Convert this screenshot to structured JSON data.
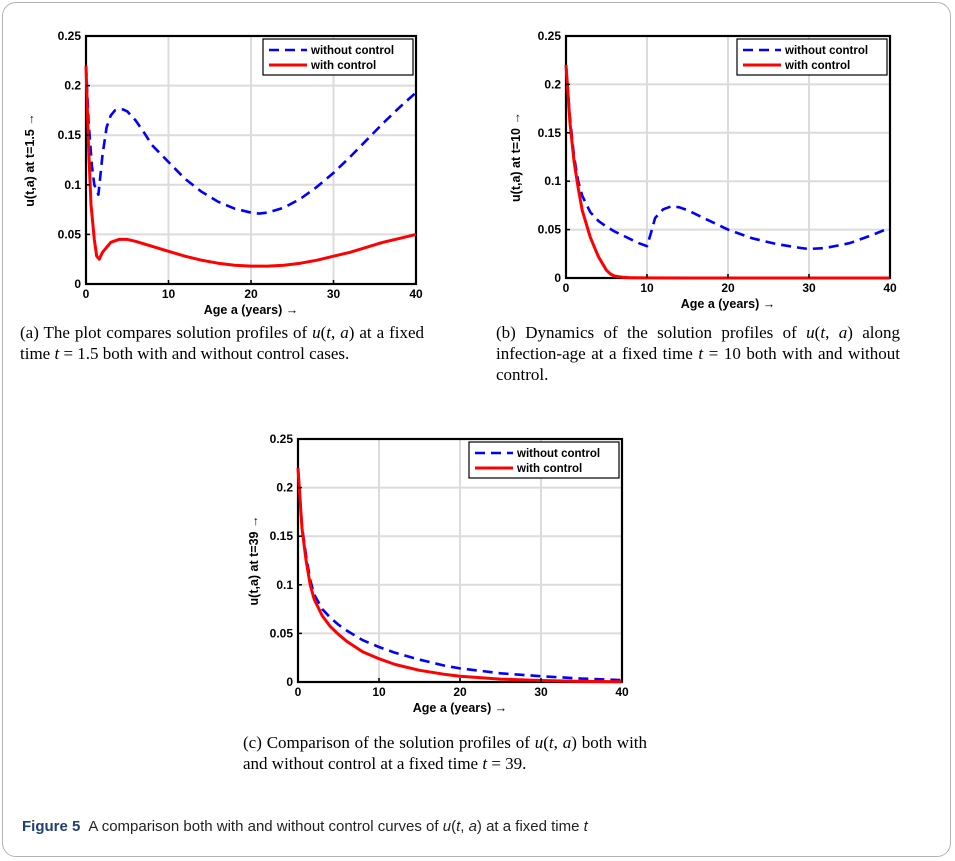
{
  "chart_data": [
    {
      "id": "a",
      "type": "line",
      "xlabel": "Age a (years) →",
      "ylabel": "u(t,a) at t=1.5 →",
      "xlim": [
        0,
        40
      ],
      "ylim": [
        0,
        0.25
      ],
      "xticks": [
        "0",
        "10",
        "20",
        "30",
        "40"
      ],
      "yticks": [
        "0",
        "0.05",
        "0.1",
        "0.15",
        "0.2",
        "0.25"
      ],
      "grid": true,
      "legend_position": "top-right",
      "series": [
        {
          "name": "without control",
          "color": "#0000ff",
          "dash": true,
          "x": [
            0,
            0.3,
            0.7,
            1,
            1.5,
            2,
            2.5,
            3,
            3.5,
            4,
            4.5,
            5,
            6,
            7,
            8,
            10,
            12,
            14,
            16,
            18,
            20,
            21,
            22,
            24,
            26,
            28,
            30,
            32,
            34,
            36,
            38,
            40
          ],
          "y": [
            0.22,
            0.165,
            0.12,
            0.1,
            0.09,
            0.13,
            0.158,
            0.17,
            0.175,
            0.176,
            0.176,
            0.174,
            0.165,
            0.153,
            0.14,
            0.123,
            0.106,
            0.093,
            0.083,
            0.076,
            0.072,
            0.071,
            0.072,
            0.077,
            0.086,
            0.098,
            0.112,
            0.128,
            0.145,
            0.162,
            0.178,
            0.193
          ]
        },
        {
          "name": "with control",
          "color": "#ff0000",
          "dash": false,
          "x": [
            0,
            0.3,
            0.6,
            1,
            1.3,
            1.6,
            2,
            3,
            4,
            5,
            6,
            8,
            10,
            12,
            14,
            16,
            18,
            20,
            22,
            24,
            26,
            28,
            30,
            32,
            34,
            36,
            38,
            40
          ],
          "y": [
            0.22,
            0.14,
            0.08,
            0.045,
            0.028,
            0.025,
            0.032,
            0.042,
            0.045,
            0.045,
            0.043,
            0.038,
            0.033,
            0.028,
            0.024,
            0.021,
            0.019,
            0.018,
            0.018,
            0.019,
            0.021,
            0.024,
            0.028,
            0.032,
            0.037,
            0.042,
            0.046,
            0.05
          ]
        }
      ]
    },
    {
      "id": "b",
      "type": "line",
      "xlabel": "Age a (years) →",
      "ylabel": "u(t,a) at t=10 →",
      "xlim": [
        0,
        40
      ],
      "ylim": [
        0,
        0.25
      ],
      "xticks": [
        "0",
        "10",
        "20",
        "30",
        "40"
      ],
      "yticks": [
        "0",
        "0.05",
        "0.1",
        "0.15",
        "0.2",
        "0.25"
      ],
      "grid": true,
      "legend_position": "top-right",
      "series": [
        {
          "name": "without control",
          "color": "#0000ff",
          "dash": true,
          "x": [
            0,
            0.5,
            1,
            1.5,
            2,
            3,
            4,
            5,
            6,
            7,
            8,
            9,
            10,
            10.5,
            11,
            12,
            13,
            14,
            15,
            17,
            20,
            23,
            26,
            29,
            30,
            32,
            35,
            38,
            40
          ],
          "y": [
            0.22,
            0.165,
            0.125,
            0.1,
            0.085,
            0.068,
            0.059,
            0.053,
            0.048,
            0.044,
            0.04,
            0.036,
            0.033,
            0.047,
            0.062,
            0.071,
            0.074,
            0.073,
            0.07,
            0.062,
            0.05,
            0.041,
            0.035,
            0.031,
            0.03,
            0.031,
            0.036,
            0.045,
            0.052
          ]
        },
        {
          "name": "with control",
          "color": "#ff0000",
          "dash": false,
          "x": [
            0,
            0.5,
            1,
            1.5,
            2,
            3,
            4,
            5,
            5.5,
            6,
            7,
            8,
            10,
            15,
            20,
            30,
            40
          ],
          "y": [
            0.22,
            0.16,
            0.12,
            0.093,
            0.07,
            0.042,
            0.022,
            0.008,
            0.004,
            0.002,
            0.0008,
            0.0003,
            0.0001,
            0,
            0,
            0,
            0
          ]
        }
      ]
    },
    {
      "id": "c",
      "type": "line",
      "xlabel": "Age a (years) →",
      "ylabel": "u(t,a) at t=39 →",
      "xlim": [
        0,
        40
      ],
      "ylim": [
        0,
        0.25
      ],
      "xticks": [
        "0",
        "10",
        "20",
        "30",
        "40"
      ],
      "yticks": [
        "0",
        "0.05",
        "0.1",
        "0.15",
        "0.2",
        "0.25"
      ],
      "grid": true,
      "legend_position": "top-right",
      "series": [
        {
          "name": "without control",
          "color": "#0000ff",
          "dash": true,
          "x": [
            0,
            0.5,
            1,
            1.5,
            2,
            3,
            4,
            5,
            6,
            8,
            10,
            12,
            15,
            18,
            20,
            25,
            30,
            35,
            40
          ],
          "y": [
            0.22,
            0.16,
            0.13,
            0.105,
            0.09,
            0.075,
            0.066,
            0.059,
            0.053,
            0.043,
            0.036,
            0.03,
            0.023,
            0.017,
            0.014,
            0.009,
            0.006,
            0.0035,
            0.002
          ]
        },
        {
          "name": "with control",
          "color": "#ff0000",
          "dash": false,
          "x": [
            0,
            0.5,
            1,
            1.5,
            2,
            3,
            4,
            5,
            6,
            8,
            10,
            12,
            15,
            18,
            20,
            25,
            30,
            35,
            40
          ],
          "y": [
            0.22,
            0.158,
            0.125,
            0.1,
            0.085,
            0.068,
            0.057,
            0.049,
            0.042,
            0.031,
            0.024,
            0.018,
            0.012,
            0.008,
            0.006,
            0.003,
            0.0015,
            0.0006,
            0.0002
          ]
        }
      ]
    }
  ],
  "captions": {
    "a": "(a) The plot compares solution profiles of u(t, a) at a fixed time t = 1.5 both with and without control cases.",
    "b": "(b) Dynamics of the solution profiles of u(t, a) along infection-age at a fixed time t = 10 both with and without control.",
    "c": "(c) Comparison of the solution profiles of u(t, a) both with and without control at a fixed time t = 39."
  },
  "figure_caption": {
    "label": "Figure 5",
    "text": "A comparison both with and without control curves of u(t, a) at a fixed time t"
  }
}
